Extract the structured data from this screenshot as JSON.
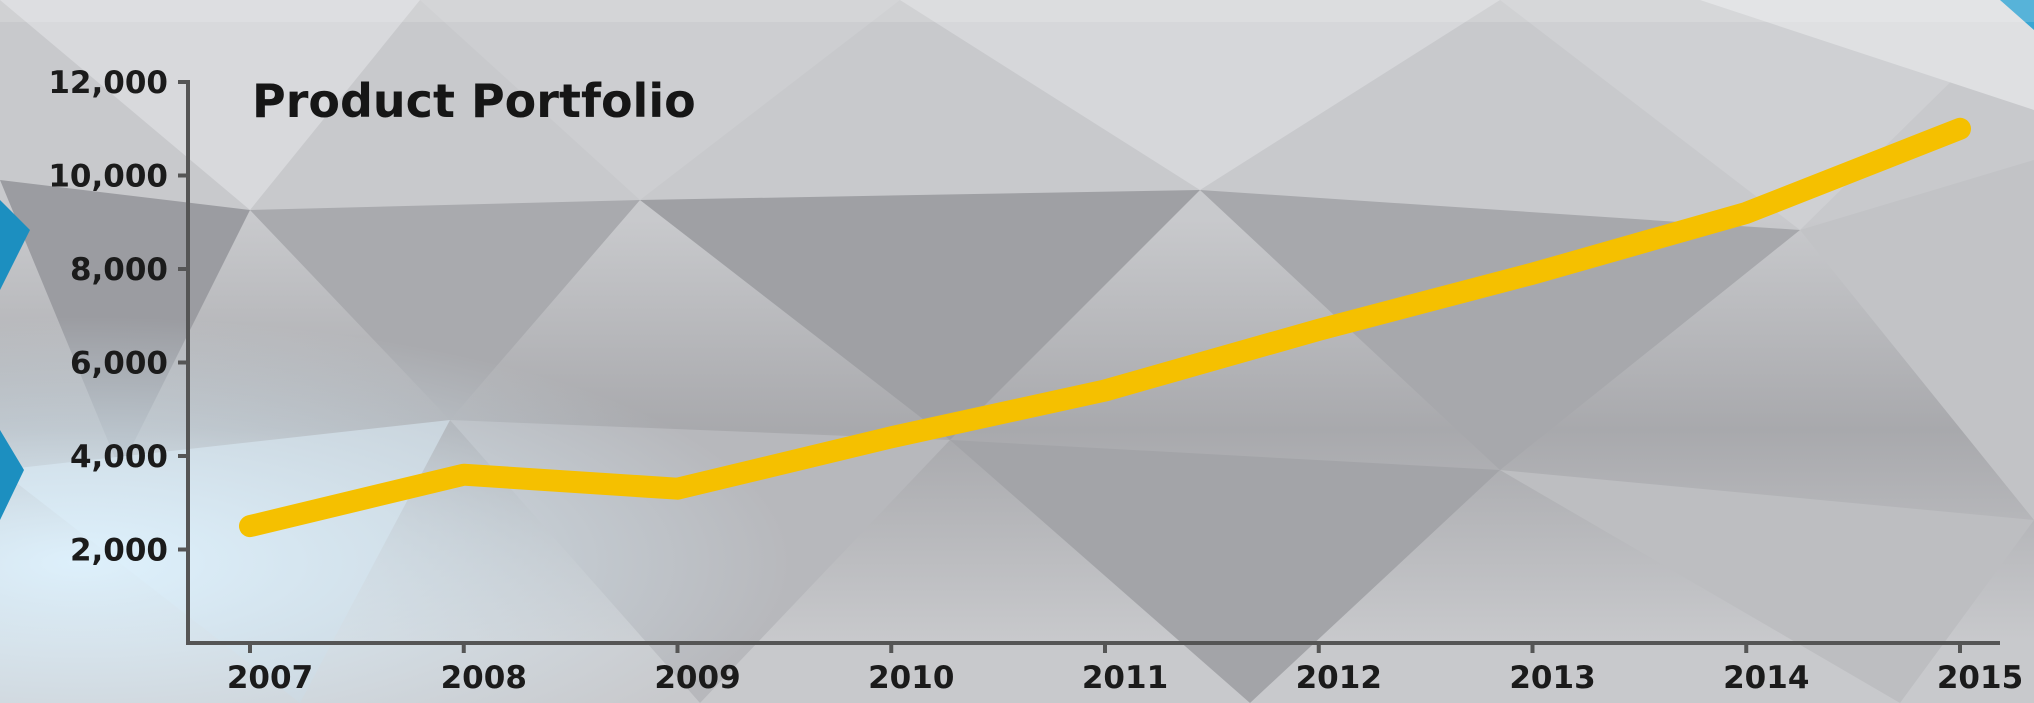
{
  "chart_data": {
    "type": "line",
    "title": "Product Portfolio",
    "xlabel": "",
    "ylabel": "",
    "categories": [
      "2007",
      "2008",
      "2009",
      "2010",
      "2011",
      "2012",
      "2013",
      "2014",
      "2015"
    ],
    "y_ticks": [
      "2,000",
      "4,000",
      "6,000",
      "8,000",
      "10,000",
      "12,000"
    ],
    "series": [
      {
        "values": [
          2500,
          3600,
          3300,
          4400,
          5400,
          6700,
          7900,
          9200,
          11000
        ]
      }
    ],
    "ylim": [
      0,
      12000
    ],
    "grid": false,
    "legend": "none",
    "colors": {
      "line": "#f5c000",
      "axis": "#555555",
      "text": "#1b1b1b",
      "title": "#161616"
    }
  }
}
